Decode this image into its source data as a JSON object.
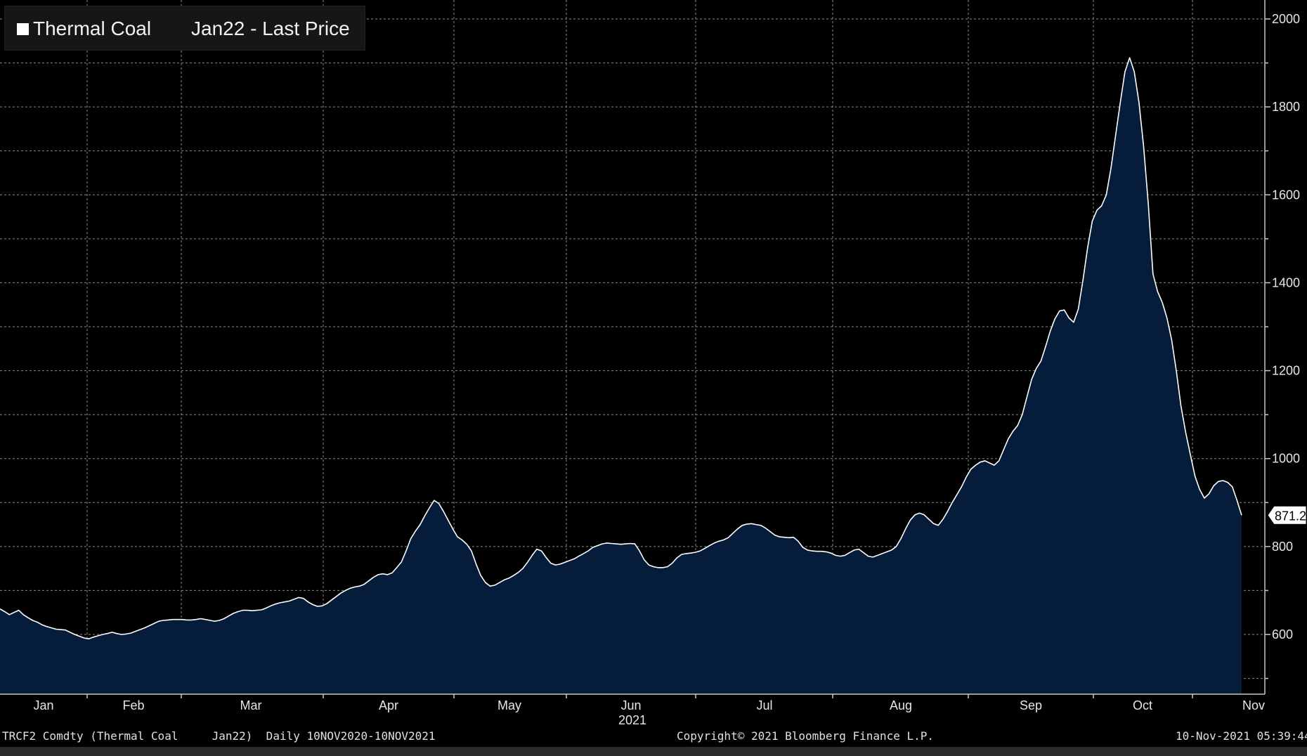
{
  "legend": {
    "name": "Thermal Coal",
    "desc": "Jan22 - Last Price"
  },
  "footer": {
    "left": "TRCF2 Comdty (Thermal Coal     Jan22)  Daily 10NOV2020-10NOV2021",
    "center": "Copyright© 2021 Bloomberg Finance L.P.",
    "right": "10-Nov-2021 05:39:44"
  },
  "colors": {
    "background": "#000000",
    "area_fill": "#051d3b",
    "line": "#ffffff",
    "grid": "#8a8a8a"
  },
  "chart_data": {
    "type": "area",
    "x_labels": [
      "Jan",
      "Feb",
      "Mar",
      "Apr",
      "May",
      "Jun",
      "Jul",
      "Aug",
      "Sep",
      "Oct",
      "Nov"
    ],
    "year_label": "2021",
    "y_ticks": [
      600,
      800,
      1000,
      1200,
      1400,
      1600,
      1800,
      2000
    ],
    "ylim": [
      460,
      2010
    ],
    "last_value_label": "871.2",
    "grid": true,
    "series": [
      {
        "values": [
          658,
          652,
          645,
          650,
          655,
          645,
          638,
          632,
          628,
          622,
          618,
          615,
          612,
          611,
          610,
          605,
          600,
          596,
          592,
          590,
          594,
          597,
          600,
          602,
          605,
          602,
          600,
          601,
          603,
          607,
          611,
          615,
          620,
          625,
          630,
          632,
          633,
          634,
          634,
          634,
          633,
          633,
          634,
          636,
          634,
          632,
          630,
          632,
          636,
          642,
          648,
          652,
          655,
          655,
          654,
          655,
          656,
          660,
          665,
          669,
          672,
          674,
          676,
          680,
          684,
          682,
          674,
          668,
          664,
          665,
          670,
          678,
          686,
          694,
          700,
          705,
          708,
          710,
          714,
          722,
          730,
          736,
          738,
          736,
          740,
          752,
          765,
          790,
          818,
          835,
          850,
          870,
          888,
          905,
          898,
          880,
          860,
          840,
          822,
          815,
          805,
          790,
          760,
          734,
          718,
          710,
          712,
          718,
          724,
          728,
          734,
          741,
          750,
          764,
          780,
          794,
          790,
          775,
          762,
          758,
          760,
          764,
          768,
          772,
          778,
          784,
          790,
          798,
          802,
          806,
          808,
          807,
          806,
          805,
          806,
          807,
          806,
          790,
          770,
          758,
          754,
          752,
          752,
          754,
          762,
          774,
          782,
          784,
          785,
          787,
          790,
          796,
          802,
          808,
          812,
          815,
          820,
          830,
          840,
          848,
          851,
          852,
          850,
          848,
          842,
          834,
          826,
          822,
          821,
          820,
          821,
          812,
          798,
          792,
          790,
          789,
          789,
          788,
          785,
          780,
          778,
          780,
          786,
          792,
          794,
          786,
          778,
          776,
          780,
          784,
          788,
          792,
          800,
          818,
          840,
          860,
          872,
          876,
          872,
          862,
          852,
          848,
          862,
          880,
          900,
          918,
          936,
          958,
          976,
          985,
          992,
          995,
          990,
          985,
          995,
          1020,
          1045,
          1062,
          1075,
          1100,
          1140,
          1180,
          1205,
          1222,
          1255,
          1290,
          1318,
          1336,
          1338,
          1320,
          1310,
          1340,
          1405,
          1480,
          1540,
          1565,
          1575,
          1600,
          1660,
          1735,
          1810,
          1880,
          1912,
          1880,
          1810,
          1710,
          1580,
          1420,
          1380,
          1355,
          1320,
          1270,
          1200,
          1120,
          1060,
          1010,
          960,
          930,
          910,
          920,
          938,
          948,
          950,
          946,
          936,
          905,
          871.2
        ]
      }
    ]
  }
}
